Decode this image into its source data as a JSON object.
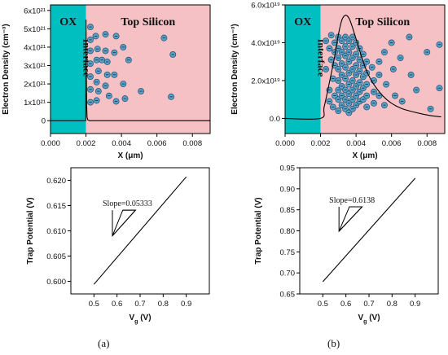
{
  "colors": {
    "ox_fill": "#00bfc0",
    "silicon_fill": "#f6c1c4",
    "electron_fill": "#5a9fc4",
    "electron_stroke": "#1c4f72",
    "line": "#000000"
  },
  "panel_labels": [
    "(a)",
    "(b)"
  ],
  "chart_data": [
    {
      "id": "a_top",
      "type": "line",
      "ylabel": "Electron Density (cm⁻³)",
      "xlabel": "X (μm)",
      "xlim": [
        0,
        0.009
      ],
      "ylim": [
        -7e+20,
        6.3e+21
      ],
      "x_ticks": [
        "0.000",
        "0.002",
        "0.004",
        "0.006",
        "0.008"
      ],
      "x_tick_values": [
        0,
        0.002,
        0.004,
        0.006,
        0.008
      ],
      "y_ticks": [
        "0",
        "1x10²¹",
        "2x10²¹",
        "3x10²¹",
        "4x10²¹",
        "5x10²¹",
        "6x10²¹"
      ],
      "y_tick_values": [
        0,
        1e+21,
        2e+21,
        3e+21,
        4e+21,
        5e+21,
        6e+21
      ],
      "regions": [
        {
          "name": "OX",
          "x_range": [
            0,
            0.002
          ],
          "label": "OX"
        },
        {
          "name": "Top Silicon",
          "x_range": [
            0.002,
            0.009
          ],
          "label": "Top Silicon"
        }
      ],
      "interface_label": "Interface",
      "interface_x": 0.002,
      "series": [
        {
          "x": [
            0,
            0.00199,
            0.002,
            0.00202,
            0.00204,
            0.00206,
            0.0021,
            0.0022,
            0.009
          ],
          "y": [
            0,
            0,
            5.5e+21,
            2.5e+21,
            8e+20,
            2e+20,
            5e+19,
            0,
            0
          ]
        }
      ],
      "electrons": [
        [
          0.00225,
          5.1e+21
        ],
        [
          0.00225,
          4.4e+21
        ],
        [
          0.00225,
          3.8e+21
        ],
        [
          0.00225,
          3.1e+21
        ],
        [
          0.00225,
          2.4e+21
        ],
        [
          0.00225,
          1.7e+21
        ],
        [
          0.00225,
          1e+21
        ],
        [
          0.00255,
          4.6e+21
        ],
        [
          0.00265,
          3.9e+21
        ],
        [
          0.0026,
          3.3e+21
        ],
        [
          0.0027,
          2.7e+21
        ],
        [
          0.0026,
          2.1e+21
        ],
        [
          0.0027,
          1.6e+21
        ],
        [
          0.0026,
          1.1e+21
        ],
        [
          0.0031,
          4.7e+21
        ],
        [
          0.0031,
          3.8e+21
        ],
        [
          0.0029,
          3.3e+21
        ],
        [
          0.0032,
          3.2e+21
        ],
        [
          0.0032,
          2.5e+21
        ],
        [
          0.0031,
          1.9e+21
        ],
        [
          0.0033,
          1.35e+21
        ],
        [
          0.0037,
          4.6e+21
        ],
        [
          0.0036,
          3.7e+21
        ],
        [
          0.0036,
          2.5e+21
        ],
        [
          0.0037,
          1.05e+21
        ],
        [
          0.0041,
          4e+21
        ],
        [
          0.0041,
          2e+21
        ],
        [
          0.0042,
          1.2e+21
        ],
        [
          0.0044,
          3.3e+21
        ],
        [
          0.0051,
          1.6e+21
        ],
        [
          0.0064,
          4.5e+21
        ],
        [
          0.0069,
          3.6e+21
        ],
        [
          0.0068,
          1.3e+21
        ]
      ]
    },
    {
      "id": "b_top",
      "type": "line",
      "ylabel": "Electron Density (cm⁻³)",
      "xlabel": "X (μm)",
      "xlim": [
        0,
        0.009
      ],
      "ylim": [
        -8e+18,
        6e+19
      ],
      "x_ticks": [
        "0.000",
        "0.002",
        "0.004",
        "0.006",
        "0.008"
      ],
      "x_tick_values": [
        0,
        0.002,
        0.004,
        0.006,
        0.008
      ],
      "y_ticks": [
        "0.0",
        "2.0x10¹⁹",
        "4.0x10¹⁹",
        "6.0x10¹⁹"
      ],
      "y_tick_values": [
        0,
        2e+19,
        4e+19,
        6e+19
      ],
      "regions": [
        {
          "name": "OX",
          "x_range": [
            0,
            0.002
          ],
          "label": "OX"
        },
        {
          "name": "Top Silicon",
          "x_range": [
            0.002,
            0.009
          ],
          "label": "Top Silicon"
        }
      ],
      "interface_label": "Interface",
      "interface_x": 0.002,
      "series": [
        {
          "x": [
            0,
            0.002,
            0.0022,
            0.0025,
            0.0028,
            0.003,
            0.0032,
            0.0034,
            0.0036,
            0.0038,
            0.004,
            0.0043,
            0.0046,
            0.005,
            0.0055,
            0.006,
            0.0065,
            0.007,
            0.008,
            0.0088
          ],
          "y": [
            0,
            0,
            6e+18,
            1.9e+19,
            3.3e+19,
            4.4e+19,
            5.2e+19,
            5.45e+19,
            5.3e+19,
            4.8e+19,
            4.2e+19,
            3.3e+19,
            2.5e+19,
            1.8e+19,
            1.2e+19,
            8e+18,
            5.5e+18,
            4e+18,
            1.8e+18,
            8e+17
          ]
        }
      ],
      "electrons": [
        [
          0.0023,
          4.1e+19
        ],
        [
          0.0023,
          2.6e+19
        ],
        [
          0.0025,
          3.7e+19
        ],
        [
          0.0025,
          1.5e+19
        ],
        [
          0.0025,
          9e+18
        ],
        [
          0.0026,
          4.4e+19
        ],
        [
          0.0026,
          3.1e+19
        ],
        [
          0.0027,
          2.1e+19
        ],
        [
          0.0027,
          6e+18
        ],
        [
          0.0028,
          4e+19
        ],
        [
          0.0028,
          3.5e+19
        ],
        [
          0.0028,
          2.8e+19
        ],
        [
          0.0028,
          1.2e+19
        ],
        [
          0.003,
          4.3e+19
        ],
        [
          0.003,
          3.7e+19
        ],
        [
          0.003,
          3.2e+19
        ],
        [
          0.003,
          2.6e+19
        ],
        [
          0.003,
          2e+19
        ],
        [
          0.003,
          1.5e+19
        ],
        [
          0.003,
          1e+19
        ],
        [
          0.003,
          4e+18
        ],
        [
          0.0032,
          4.1e+19
        ],
        [
          0.0032,
          3.5e+19
        ],
        [
          0.0032,
          2.9e+19
        ],
        [
          0.0032,
          2.3e+19
        ],
        [
          0.0032,
          1.7e+19
        ],
        [
          0.0032,
          1.2e+19
        ],
        [
          0.0032,
          7e+18
        ],
        [
          0.0034,
          4.3e+19
        ],
        [
          0.0034,
          3.8e+19
        ],
        [
          0.0034,
          3.3e+19
        ],
        [
          0.0034,
          2.7e+19
        ],
        [
          0.0034,
          2.1e+19
        ],
        [
          0.0034,
          1.5e+19
        ],
        [
          0.0034,
          1e+19
        ],
        [
          0.0034,
          5e+18
        ],
        [
          0.0036,
          4.1e+19
        ],
        [
          0.0036,
          3.5e+19
        ],
        [
          0.0036,
          3e+19
        ],
        [
          0.0036,
          2.4e+19
        ],
        [
          0.0036,
          1.8e+19
        ],
        [
          0.0036,
          1.3e+19
        ],
        [
          0.0036,
          8e+18
        ],
        [
          0.0036,
          3e+18
        ],
        [
          0.0038,
          4.3e+19
        ],
        [
          0.0038,
          3.8e+19
        ],
        [
          0.0038,
          3.2e+19
        ],
        [
          0.0038,
          2.6e+19
        ],
        [
          0.0038,
          2e+19
        ],
        [
          0.0038,
          1.5e+19
        ],
        [
          0.0038,
          1e+19
        ],
        [
          0.0038,
          5e+18
        ],
        [
          0.004,
          4e+19
        ],
        [
          0.004,
          3.4e+19
        ],
        [
          0.004,
          2.8e+19
        ],
        [
          0.004,
          2.3e+19
        ],
        [
          0.004,
          1.7e+19
        ],
        [
          0.004,
          1.2e+19
        ],
        [
          0.004,
          7e+18
        ],
        [
          0.0042,
          3.7e+19
        ],
        [
          0.0042,
          3.1e+19
        ],
        [
          0.0042,
          2.5e+19
        ],
        [
          0.0042,
          1.9e+19
        ],
        [
          0.0042,
          1.4e+19
        ],
        [
          0.0042,
          9e+18
        ],
        [
          0.0044,
          3.4e+19
        ],
        [
          0.0044,
          2.8e+19
        ],
        [
          0.0044,
          2.2e+19
        ],
        [
          0.0044,
          1.6e+19
        ],
        [
          0.0044,
          1e+19
        ],
        [
          0.0046,
          3e+19
        ],
        [
          0.0046,
          2.4e+19
        ],
        [
          0.0046,
          1.8e+19
        ],
        [
          0.0046,
          1.2e+19
        ],
        [
          0.0046,
          6e+18
        ],
        [
          0.0049,
          2.7e+19
        ],
        [
          0.005,
          2e+19
        ],
        [
          0.005,
          1.4e+19
        ],
        [
          0.005,
          8e+18
        ],
        [
          0.0053,
          3e+19
        ],
        [
          0.0053,
          2.3e+19
        ],
        [
          0.0053,
          1.2e+19
        ],
        [
          0.0056,
          3.5e+19
        ],
        [
          0.0057,
          1.8e+19
        ],
        [
          0.0056,
          7e+18
        ],
        [
          0.006,
          4e+19
        ],
        [
          0.0061,
          2.6e+19
        ],
        [
          0.0062,
          1.2e+19
        ],
        [
          0.0065,
          3.2e+19
        ],
        [
          0.0066,
          9e+18
        ],
        [
          0.007,
          4.3e+19
        ],
        [
          0.0071,
          2.3e+19
        ],
        [
          0.0074,
          1.5e+19
        ],
        [
          0.008,
          3.5e+19
        ],
        [
          0.0082,
          5e+18
        ],
        [
          0.0087,
          3.9e+19
        ],
        [
          0.0087,
          1.6e+19
        ]
      ]
    },
    {
      "id": "a_bottom",
      "type": "line",
      "ylabel": "Trap Potential (V)",
      "xlabel": "Vɡ (V)",
      "xlabel_main": "V",
      "xlabel_sub": "g",
      "xlabel_unit": " (V)",
      "xlim": [
        0.4,
        1.0
      ],
      "ylim": [
        0.5975,
        0.6225
      ],
      "x_ticks": [
        "0.5",
        "0.6",
        "0.7",
        "0.8",
        "0.9"
      ],
      "x_tick_values": [
        0.5,
        0.6,
        0.7,
        0.8,
        0.9
      ],
      "y_ticks": [
        "0.600",
        "0.605",
        "0.610",
        "0.615",
        "0.620"
      ],
      "y_tick_values": [
        0.6,
        0.605,
        0.61,
        0.615,
        0.62
      ],
      "series": [
        {
          "x": [
            0.5,
            0.9
          ],
          "y": [
            0.5994,
            0.6207
          ]
        }
      ],
      "annotation": {
        "text": "Slope=0.05333",
        "x0": 0.58,
        "x1": 0.68,
        "y_top": 0.6141,
        "y_bot": 0.609
      }
    },
    {
      "id": "b_bottom",
      "type": "line",
      "ylabel": "Trap Potential (V)",
      "xlabel": "Vɡ (V)",
      "xlabel_main": "V",
      "xlabel_sub": "g",
      "xlabel_unit": " (V)",
      "xlim": [
        0.4,
        1.0
      ],
      "ylim": [
        0.65,
        0.95
      ],
      "x_ticks": [
        "0.5",
        "0.6",
        "0.7",
        "0.8",
        "0.9"
      ],
      "x_tick_values": [
        0.5,
        0.6,
        0.7,
        0.8,
        0.9
      ],
      "y_ticks": [
        "0.65",
        "0.70",
        "0.75",
        "0.80",
        "0.85",
        "0.90",
        "0.95"
      ],
      "y_tick_values": [
        0.65,
        0.7,
        0.75,
        0.8,
        0.85,
        0.9,
        0.95
      ],
      "series": [
        {
          "x": [
            0.5,
            0.9
          ],
          "y": [
            0.679,
            0.925
          ]
        }
      ],
      "annotation": {
        "text": "Slope=0.6138",
        "x0": 0.57,
        "x1": 0.67,
        "y_top": 0.857,
        "y_bot": 0.799
      }
    }
  ]
}
